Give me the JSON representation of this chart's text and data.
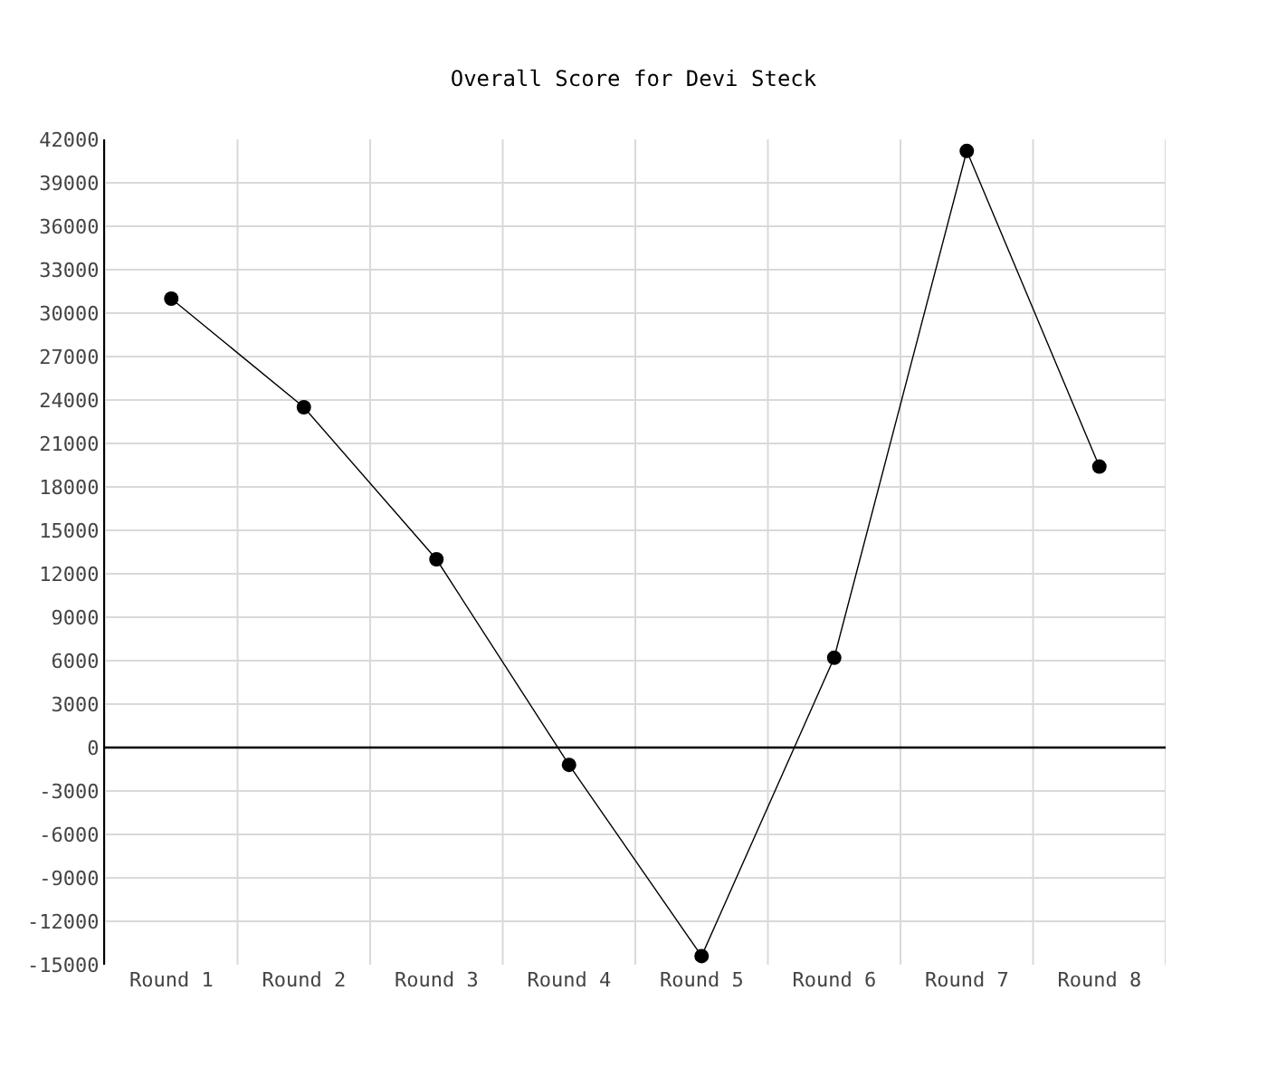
{
  "chart_data": {
    "type": "line",
    "title": "Overall Score for Devi Steck",
    "categories": [
      "Round 1",
      "Round 2",
      "Round 3",
      "Round 4",
      "Round 5",
      "Round 6",
      "Round 7",
      "Round 8"
    ],
    "series": [
      {
        "color": "#000000",
        "values": [
          31000,
          23500,
          13000,
          -1200,
          -14400,
          6200,
          41200,
          19400
        ]
      }
    ],
    "ylim": [
      -15000,
      42000
    ],
    "yticks": [
      -15000,
      -12000,
      -9000,
      -6000,
      -3000,
      0,
      3000,
      6000,
      9000,
      12000,
      15000,
      18000,
      21000,
      24000,
      27000,
      30000,
      33000,
      36000,
      39000,
      42000
    ],
    "ref_lines": [
      {
        "axis": "y",
        "value": 0,
        "color": "#000000"
      }
    ],
    "grid": true,
    "marker": "circle",
    "line_style": "solid"
  }
}
